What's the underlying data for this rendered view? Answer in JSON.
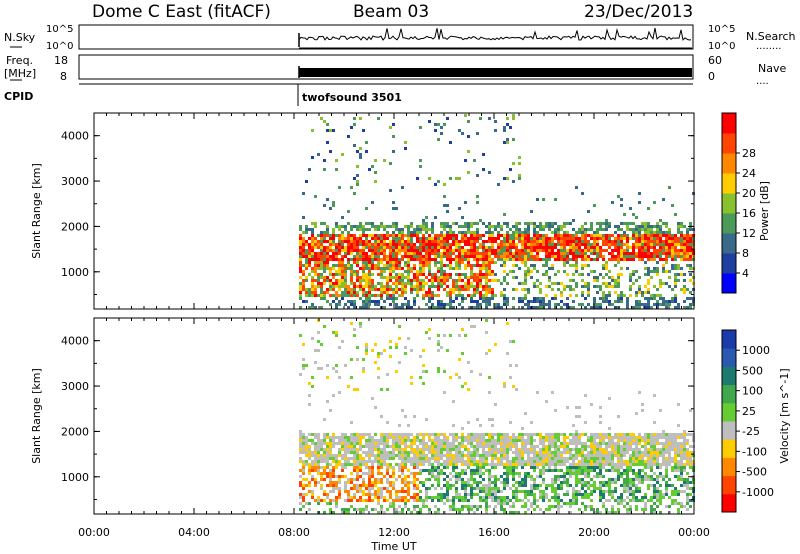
{
  "header": {
    "station": "Dome C East (fitACF)",
    "beam": "Beam 03",
    "date": "23/Dec/2013"
  },
  "nsky_panel": {
    "left_label": "N.Sky",
    "right_label": "N.Search",
    "left_ticks": [
      "10^5",
      "10^0"
    ],
    "right_ticks": [
      "10^5",
      "10^0"
    ],
    "right_marker": "........"
  },
  "freq_panel": {
    "left_label_1": "Freq.",
    "left_label_2": "[MHz]",
    "right_label": "Nave",
    "left_ticks": [
      "18",
      "8"
    ],
    "right_ticks": [
      "60",
      "0"
    ],
    "right_marker": "...."
  },
  "cpid": {
    "label": "CPID",
    "program": "twofsound 3501"
  },
  "time_axis": {
    "label": "Time UT",
    "ticks": [
      "00:00",
      "04:00",
      "08:00",
      "12:00",
      "16:00",
      "20:00",
      "00:00"
    ]
  },
  "colors": {
    "power": [
      "#0000ff",
      "#1f3fa0",
      "#3a6a8a",
      "#4c9a5a",
      "#88c030",
      "#ffcc00",
      "#ff8800",
      "#ff4400",
      "#ff0000"
    ],
    "velocity": [
      "#1a3caa",
      "#2a5ab0",
      "#1e7a6e",
      "#40a84a",
      "#66cc33",
      "#bebebe",
      "#ffcc00",
      "#ff8800",
      "#ff4400",
      "#ff0000"
    ]
  },
  "chart_data": [
    {
      "type": "heatmap",
      "name": "power",
      "ylabel": "Slant Range [km]",
      "xlabel": "Time UT",
      "xlim": [
        0,
        24
      ],
      "ylim": [
        180,
        4500
      ],
      "yticks": [
        1000,
        2000,
        3000,
        4000
      ],
      "colorbar": {
        "label": "Power [dB]",
        "ticks": [
          "4",
          "8",
          "12",
          "16",
          "20",
          "24",
          "28"
        ],
        "range": [
          0,
          32
        ]
      },
      "data_start_hour": 8.2,
      "bands": [
        {
          "range_min": 1200,
          "range_max": 1900,
          "value": "24 to 30",
          "hours": [
            8.2,
            24
          ]
        },
        {
          "range_min": 500,
          "range_max": 1100,
          "value": "16 to 28",
          "hours": [
            8.2,
            16
          ]
        },
        {
          "range_min": 200,
          "range_max": 500,
          "value": "4 to 12",
          "hours": [
            12,
            24
          ]
        },
        {
          "range_min": 1900,
          "range_max": 2200,
          "value": "8 to 14",
          "hours": [
            8.2,
            24
          ]
        },
        {
          "range_min": 3000,
          "range_max": 4500,
          "value": "4 to 12",
          "hours": [
            8.2,
            17
          ]
        }
      ]
    },
    {
      "type": "heatmap",
      "name": "velocity",
      "ylabel": "Slant Range [km]",
      "xlabel": "Time UT",
      "xlim": [
        0,
        24
      ],
      "ylim": [
        180,
        4500
      ],
      "yticks": [
        1000,
        2000,
        3000,
        4000
      ],
      "colorbar": {
        "label": "Velocity [m s^-1]",
        "ticks": [
          "1000",
          "500",
          "100",
          "25",
          "-25",
          "-100",
          "-500",
          "-1000"
        ]
      },
      "data_start_hour": 8.2,
      "bands": [
        {
          "range_min": 1300,
          "range_max": 2000,
          "value": "-25 to 25",
          "hours": [
            8.2,
            24
          ]
        },
        {
          "range_min": 500,
          "range_max": 1100,
          "value": "-500 to -100",
          "hours": [
            8.2,
            13
          ]
        },
        {
          "range_min": 500,
          "range_max": 1100,
          "value": "25 to 500",
          "hours": [
            13,
            24
          ]
        },
        {
          "range_min": 3000,
          "range_max": 4500,
          "value": "-25 to 25",
          "hours": [
            8.2,
            17
          ]
        }
      ]
    }
  ]
}
